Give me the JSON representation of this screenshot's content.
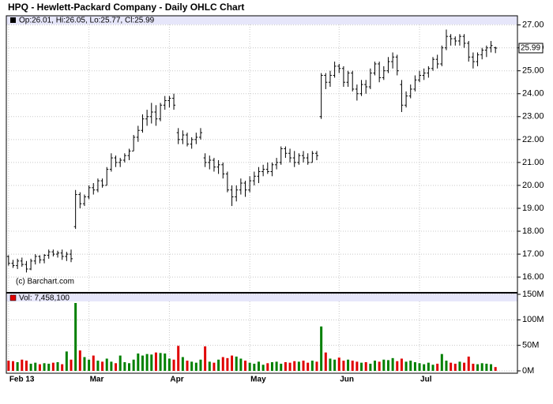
{
  "chart_data": {
    "type": "ohlc",
    "title": "HPQ - Hewlett-Packard Company - Daily OHLC Chart",
    "price_legend": "Op:26.01, Hi:26.05, Lo:25.77, Cl:25.99",
    "volume_legend": "Vol: 7,458,100",
    "watermark": "(c) Barchart.com",
    "categories": [
      "Feb 13",
      null,
      null,
      null,
      null,
      null,
      null,
      null,
      null,
      null,
      null,
      null,
      null,
      null,
      null,
      null,
      null,
      null,
      "Mar",
      null,
      null,
      null,
      null,
      null,
      null,
      null,
      null,
      null,
      null,
      null,
      null,
      null,
      null,
      null,
      null,
      null,
      "Apr",
      null,
      null,
      null,
      null,
      null,
      null,
      null,
      null,
      null,
      null,
      null,
      null,
      null,
      null,
      null,
      null,
      null,
      "May",
      null,
      null,
      null,
      null,
      null,
      null,
      null,
      null,
      null,
      null,
      null,
      null,
      null,
      null,
      null,
      null,
      null,
      null,
      null,
      "Jun",
      null,
      null,
      null,
      null,
      null,
      null,
      null,
      null,
      null,
      null,
      null,
      null,
      null,
      null,
      null,
      null,
      null,
      "Jul",
      null,
      null,
      null,
      null,
      null,
      null,
      null,
      null,
      null,
      null,
      null,
      null,
      null,
      null,
      null,
      null,
      null
    ],
    "ohlc": [
      [
        16.9,
        16.95,
        16.5,
        16.6
      ],
      [
        16.6,
        16.75,
        16.4,
        16.5
      ],
      [
        16.5,
        16.8,
        16.35,
        16.7
      ],
      [
        16.7,
        16.85,
        16.45,
        16.55
      ],
      [
        16.55,
        16.7,
        16.2,
        16.35
      ],
      [
        16.35,
        16.8,
        16.3,
        16.7
      ],
      [
        16.7,
        17.0,
        16.55,
        16.9
      ],
      [
        16.9,
        16.95,
        16.6,
        16.75
      ],
      [
        16.75,
        17.0,
        16.6,
        16.95
      ],
      [
        16.95,
        17.2,
        16.8,
        17.1
      ],
      [
        17.1,
        17.2,
        16.9,
        17.0
      ],
      [
        17.0,
        17.15,
        16.85,
        17.05
      ],
      [
        17.05,
        17.2,
        16.75,
        16.9
      ],
      [
        16.9,
        17.1,
        16.7,
        17.0
      ],
      [
        17.0,
        17.2,
        16.65,
        16.8
      ],
      [
        18.2,
        19.8,
        18.1,
        19.6
      ],
      [
        19.6,
        19.7,
        19.0,
        19.2
      ],
      [
        19.2,
        19.6,
        19.1,
        19.5
      ],
      [
        19.5,
        20.0,
        19.4,
        19.9
      ],
      [
        19.9,
        20.1,
        19.6,
        19.8
      ],
      [
        19.8,
        20.3,
        19.7,
        20.2
      ],
      [
        20.2,
        20.3,
        19.9,
        20.0
      ],
      [
        20.0,
        20.8,
        20.0,
        20.7
      ],
      [
        20.7,
        21.4,
        20.6,
        21.2
      ],
      [
        21.2,
        21.3,
        20.8,
        21.0
      ],
      [
        21.0,
        21.2,
        20.8,
        21.1
      ],
      [
        21.1,
        21.4,
        21.0,
        21.3
      ],
      [
        21.3,
        21.6,
        21.1,
        21.5
      ],
      [
        21.5,
        22.2,
        21.5,
        22.1
      ],
      [
        22.1,
        22.6,
        21.9,
        22.4
      ],
      [
        22.4,
        23.1,
        22.3,
        22.9
      ],
      [
        22.9,
        23.3,
        22.6,
        23.0
      ],
      [
        23.0,
        23.6,
        22.7,
        23.2
      ],
      [
        23.2,
        23.5,
        22.6,
        22.9
      ],
      [
        22.9,
        23.6,
        22.8,
        23.5
      ],
      [
        23.5,
        23.9,
        23.3,
        23.7
      ],
      [
        23.7,
        23.9,
        23.4,
        23.8
      ],
      [
        23.8,
        24.0,
        23.3,
        23.5
      ],
      [
        22.3,
        22.5,
        21.8,
        22.0
      ],
      [
        22.0,
        22.4,
        21.8,
        22.2
      ],
      [
        22.2,
        22.3,
        21.7,
        21.8
      ],
      [
        21.8,
        22.1,
        21.6,
        22.0
      ],
      [
        22.0,
        22.3,
        21.8,
        22.1
      ],
      [
        22.1,
        22.5,
        22.0,
        22.3
      ],
      [
        21.2,
        21.4,
        20.8,
        21.0
      ],
      [
        21.0,
        21.3,
        20.7,
        21.1
      ],
      [
        21.1,
        21.2,
        20.6,
        20.8
      ],
      [
        20.8,
        21.1,
        20.5,
        20.9
      ],
      [
        20.9,
        21.0,
        20.3,
        20.5
      ],
      [
        20.5,
        20.6,
        19.7,
        19.8
      ],
      [
        19.8,
        20.0,
        19.1,
        19.5
      ],
      [
        19.5,
        20.0,
        19.3,
        19.8
      ],
      [
        19.8,
        20.3,
        19.6,
        20.1
      ],
      [
        20.1,
        20.2,
        19.5,
        19.8
      ],
      [
        19.8,
        20.4,
        19.7,
        20.2
      ],
      [
        20.2,
        20.6,
        20.0,
        20.4
      ],
      [
        20.4,
        20.8,
        20.1,
        20.6
      ],
      [
        20.6,
        20.9,
        20.4,
        20.7
      ],
      [
        20.7,
        21.0,
        20.5,
        20.6
      ],
      [
        20.6,
        21.0,
        20.4,
        20.9
      ],
      [
        20.9,
        21.2,
        20.7,
        21.0
      ],
      [
        21.0,
        21.7,
        20.9,
        21.6
      ],
      [
        21.6,
        21.7,
        21.2,
        21.4
      ],
      [
        21.4,
        21.6,
        21.0,
        21.2
      ],
      [
        21.2,
        21.5,
        20.8,
        21.0
      ],
      [
        21.0,
        21.4,
        20.9,
        21.3
      ],
      [
        21.3,
        21.5,
        21.0,
        21.2
      ],
      [
        21.2,
        21.4,
        20.9,
        21.0
      ],
      [
        21.0,
        21.5,
        21.0,
        21.4
      ],
      [
        21.4,
        21.5,
        21.1,
        21.3
      ],
      [
        23.0,
        24.9,
        22.9,
        24.8
      ],
      [
        24.8,
        24.9,
        24.2,
        24.5
      ],
      [
        24.5,
        25.0,
        24.3,
        24.8
      ],
      [
        24.8,
        25.4,
        24.7,
        25.2
      ],
      [
        25.2,
        25.3,
        24.9,
        25.1
      ],
      [
        25.1,
        25.2,
        24.3,
        24.5
      ],
      [
        24.5,
        25.0,
        24.3,
        24.9
      ],
      [
        24.9,
        25.0,
        24.1,
        24.2
      ],
      [
        24.2,
        24.4,
        23.7,
        24.0
      ],
      [
        24.0,
        24.6,
        23.9,
        24.4
      ],
      [
        24.4,
        24.6,
        24.0,
        24.3
      ],
      [
        24.3,
        25.1,
        24.2,
        24.9
      ],
      [
        24.9,
        25.4,
        24.8,
        25.3
      ],
      [
        25.3,
        25.4,
        24.5,
        24.7
      ],
      [
        24.7,
        25.2,
        24.6,
        25.0
      ],
      [
        25.0,
        25.6,
        24.9,
        25.4
      ],
      [
        25.4,
        25.8,
        25.1,
        25.6
      ],
      [
        25.6,
        25.7,
        24.8,
        25.0
      ],
      [
        24.4,
        24.6,
        23.2,
        23.5
      ],
      [
        23.5,
        24.1,
        23.4,
        23.9
      ],
      [
        23.9,
        24.4,
        23.8,
        24.2
      ],
      [
        24.2,
        24.8,
        24.1,
        24.6
      ],
      [
        24.6,
        25.0,
        24.5,
        24.8
      ],
      [
        24.8,
        25.1,
        24.6,
        24.9
      ],
      [
        24.9,
        25.2,
        24.7,
        25.1
      ],
      [
        25.1,
        25.6,
        25.0,
        25.5
      ],
      [
        25.5,
        25.7,
        25.1,
        25.3
      ],
      [
        25.3,
        26.1,
        25.2,
        26.0
      ],
      [
        26.0,
        26.8,
        25.9,
        26.5
      ],
      [
        26.5,
        26.6,
        26.1,
        26.4
      ],
      [
        26.4,
        26.5,
        26.1,
        26.3
      ],
      [
        26.3,
        26.6,
        26.1,
        26.5
      ],
      [
        26.5,
        26.6,
        26.0,
        26.2
      ],
      [
        26.2,
        26.3,
        25.4,
        25.6
      ],
      [
        25.6,
        25.8,
        25.1,
        25.4
      ],
      [
        25.4,
        25.8,
        25.2,
        25.7
      ],
      [
        25.7,
        26.0,
        25.5,
        25.9
      ],
      [
        25.9,
        26.1,
        25.6,
        26.0
      ],
      [
        26.0,
        26.3,
        25.8,
        26.1
      ],
      [
        26.01,
        26.05,
        25.77,
        25.99
      ]
    ],
    "volume": [
      20,
      19,
      17,
      22,
      20,
      14,
      16,
      13,
      15,
      14,
      16,
      17,
      13,
      38,
      22,
      133,
      40,
      27,
      22,
      30,
      20,
      18,
      24,
      18,
      15,
      30,
      17,
      15,
      22,
      34,
      30,
      33,
      32,
      36,
      35,
      34,
      24,
      22,
      49,
      27,
      20,
      18,
      16,
      22,
      48,
      18,
      16,
      22,
      27,
      25,
      30,
      28,
      24,
      20,
      16,
      14,
      18,
      12,
      15,
      17,
      18,
      14,
      17,
      16,
      19,
      18,
      20,
      16,
      20,
      18,
      87,
      36,
      24,
      22,
      26,
      20,
      22,
      20,
      18,
      16,
      17,
      14,
      20,
      18,
      22,
      21,
      25,
      19,
      24,
      18,
      20,
      17,
      15,
      13,
      16,
      12,
      14,
      33,
      20,
      16,
      14,
      18,
      16,
      28,
      14,
      13,
      15,
      14,
      13,
      7.4581
    ],
    "ylim": [
      15.35,
      27.4
    ],
    "yticks": [
      {
        "value": 16,
        "label": "16.00"
      },
      {
        "value": 17,
        "label": "17.00"
      },
      {
        "value": 18,
        "label": "18.00"
      },
      {
        "value": 19,
        "label": "19.00"
      },
      {
        "value": 20,
        "label": "20.00"
      },
      {
        "value": 21,
        "label": "21.00"
      },
      {
        "value": 22,
        "label": "22.00"
      },
      {
        "value": 23,
        "label": "23.00"
      },
      {
        "value": 24,
        "label": "24.00"
      },
      {
        "value": 25,
        "label": "25.00"
      },
      {
        "value": 26,
        "label": "26.00"
      },
      {
        "value": 27,
        "label": "27.00"
      }
    ],
    "vlim": [
      0,
      150
    ],
    "vticks": [
      {
        "value": 0,
        "label": "0M"
      },
      {
        "value": 50,
        "label": "50M"
      },
      {
        "value": 100,
        "label": "100M"
      },
      {
        "value": 150,
        "label": "150M"
      }
    ],
    "bar_color": "#000000",
    "up_color": "#008000",
    "down_color": "#e00000",
    "grid": true
  }
}
